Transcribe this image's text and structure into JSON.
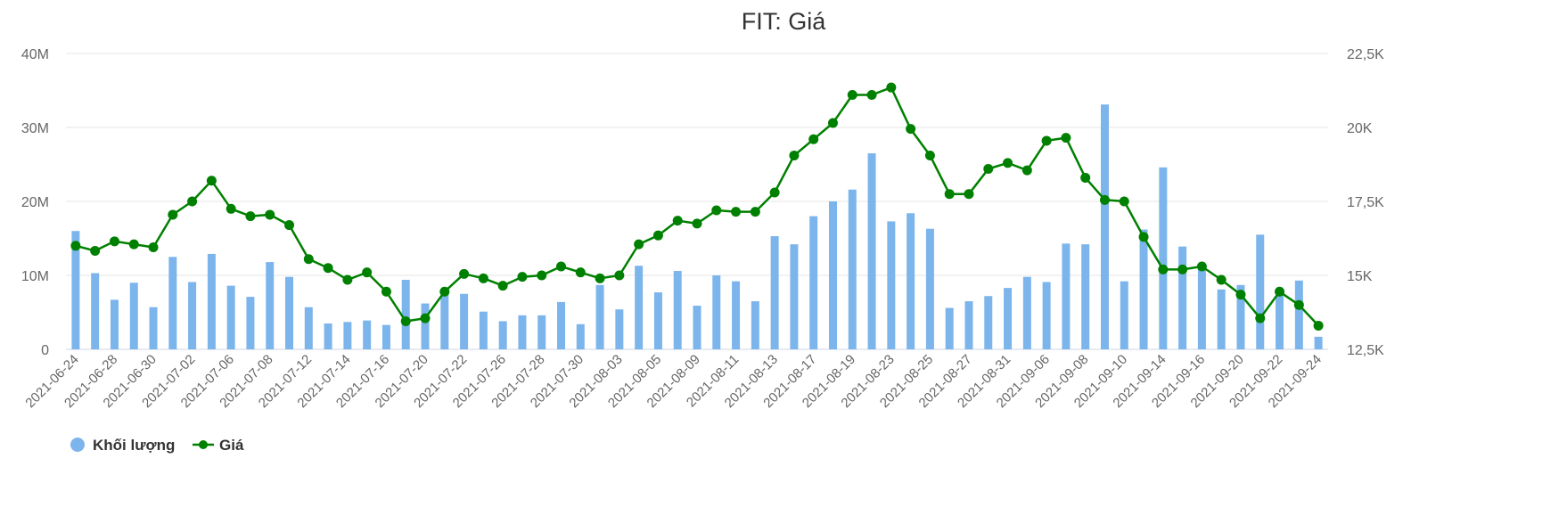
{
  "chart_data": {
    "type": "bar+line",
    "title": "FIT: Giá",
    "xlabel": "",
    "ylabel_left": "",
    "ylabel_right": "",
    "x": [
      "2021-06-24",
      "2021-06-25",
      "2021-06-28",
      "2021-06-29",
      "2021-06-30",
      "2021-07-01",
      "2021-07-02",
      "2021-07-05",
      "2021-07-06",
      "2021-07-07",
      "2021-07-08",
      "2021-07-09",
      "2021-07-12",
      "2021-07-13",
      "2021-07-14",
      "2021-07-15",
      "2021-07-16",
      "2021-07-19",
      "2021-07-20",
      "2021-07-21",
      "2021-07-22",
      "2021-07-23",
      "2021-07-26",
      "2021-07-27",
      "2021-07-28",
      "2021-07-29",
      "2021-07-30",
      "2021-08-02",
      "2021-08-03",
      "2021-08-04",
      "2021-08-05",
      "2021-08-06",
      "2021-08-09",
      "2021-08-10",
      "2021-08-11",
      "2021-08-12",
      "2021-08-13",
      "2021-08-16",
      "2021-08-17",
      "2021-08-18",
      "2021-08-19",
      "2021-08-20",
      "2021-08-23",
      "2021-08-24",
      "2021-08-25",
      "2021-08-26",
      "2021-08-27",
      "2021-08-30",
      "2021-08-31",
      "2021-09-01",
      "2021-09-06",
      "2021-09-07",
      "2021-09-08",
      "2021-09-09",
      "2021-09-10",
      "2021-09-13",
      "2021-09-14",
      "2021-09-15",
      "2021-09-16",
      "2021-09-17",
      "2021-09-20",
      "2021-09-21",
      "2021-09-22",
      "2021-09-23",
      "2021-09-24"
    ],
    "x_tick_labels": [
      "2021-06-24",
      "2021-06-28",
      "2021-06-30",
      "2021-07-02",
      "2021-07-06",
      "2021-07-08",
      "2021-07-12",
      "2021-07-14",
      "2021-07-16",
      "2021-07-20",
      "2021-07-22",
      "2021-07-26",
      "2021-07-28",
      "2021-07-30",
      "2021-08-03",
      "2021-08-05",
      "2021-08-09",
      "2021-08-11",
      "2021-08-13",
      "2021-08-17",
      "2021-08-19",
      "2021-08-23",
      "2021-08-25",
      "2021-08-27",
      "2021-08-31",
      "2021-09-06",
      "2021-09-08",
      "2021-09-10",
      "2021-09-14",
      "2021-09-16",
      "2021-09-20",
      "2021-09-22",
      "2021-09-24"
    ],
    "y_left_ticks": [
      "0",
      "10M",
      "20M",
      "30M",
      "40M"
    ],
    "y_left_range": [
      0,
      40000000
    ],
    "y_right_ticks": [
      "12,5K",
      "15K",
      "17,5K",
      "20K",
      "22,5K"
    ],
    "y_right_range": [
      12500,
      22500
    ],
    "grid": true,
    "legend_position": "bottom-left",
    "series": [
      {
        "name": "Khối lượng",
        "kind": "bar",
        "axis": "left",
        "color": "#7cb5ec",
        "values": [
          16000000,
          10300000,
          6700000,
          9000000,
          5700000,
          12500000,
          9100000,
          12900000,
          8600000,
          7100000,
          11800000,
          9800000,
          5700000,
          3500000,
          3700000,
          3900000,
          3300000,
          9400000,
          6200000,
          7600000,
          7500000,
          5100000,
          3800000,
          4600000,
          4600000,
          6400000,
          3400000,
          8700000,
          5400000,
          11300000,
          7700000,
          10600000,
          5900000,
          10000000,
          9200000,
          6500000,
          15300000,
          14200000,
          18000000,
          20000000,
          21600000,
          26500000,
          17300000,
          18400000,
          16300000,
          5600000,
          6500000,
          7200000,
          8300000,
          9800000,
          9100000,
          14300000,
          14200000,
          33100000,
          9200000,
          16200000,
          24600000,
          13900000,
          11000000,
          8100000,
          8700000,
          15500000,
          7300000,
          9300000,
          1700000
        ]
      },
      {
        "name": "Giá",
        "kind": "line",
        "axis": "right",
        "color": "#008000",
        "values": [
          16000,
          15830,
          16150,
          16050,
          15950,
          17050,
          17500,
          18200,
          17250,
          17000,
          17050,
          16700,
          15550,
          15250,
          14850,
          15100,
          14450,
          13450,
          13550,
          14450,
          15050,
          14900,
          14650,
          14950,
          15000,
          15300,
          15100,
          14900,
          15000,
          16050,
          16350,
          16850,
          16750,
          17200,
          17150,
          17150,
          17800,
          19050,
          19600,
          20150,
          21100,
          21100,
          21350,
          19950,
          19050,
          17750,
          17750,
          18600,
          18800,
          18550,
          19550,
          19650,
          18300,
          17550,
          17500,
          16300,
          15200,
          15200,
          15300,
          14850,
          14350,
          13550,
          14450,
          14000,
          13300
        ]
      }
    ]
  }
}
